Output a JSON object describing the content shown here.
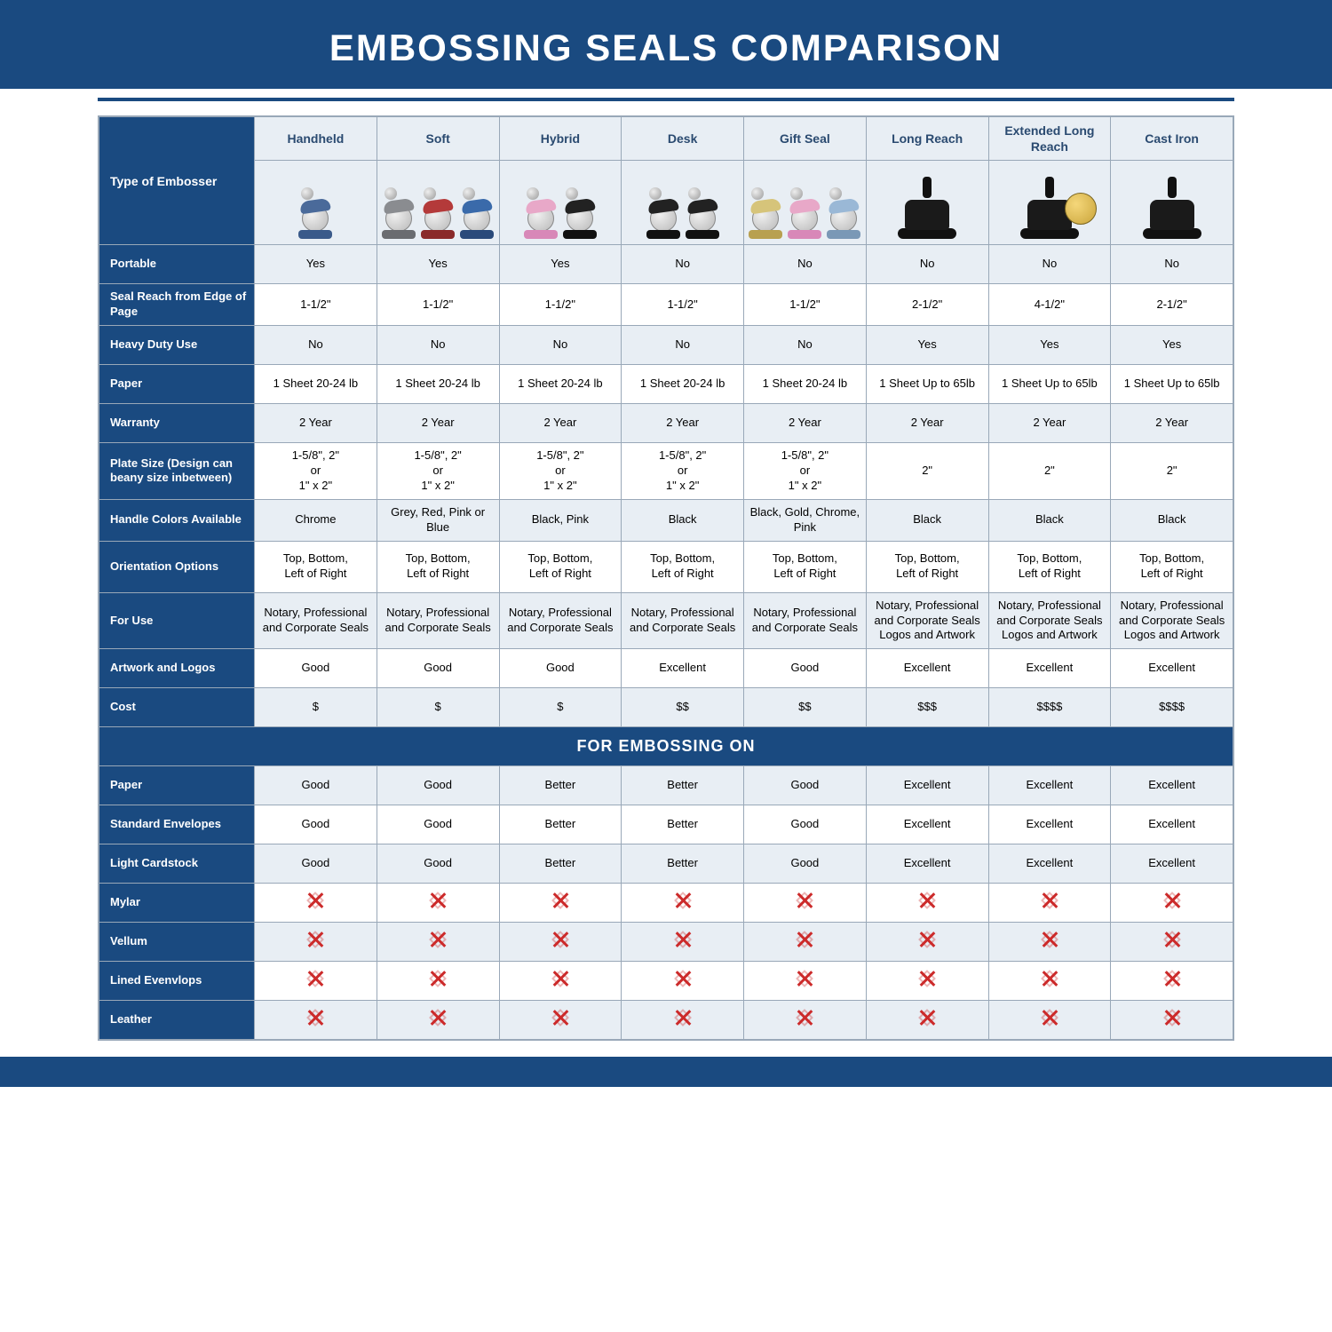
{
  "title": "EMBOSSING SEALS COMPARISON",
  "section_bar": "FOR EMBOSSING ON",
  "colors": {
    "brand": "#1a4a80",
    "row_alt": "#e8eef4",
    "border": "#99a8b8",
    "x_red": "#cc2a2a",
    "text_head": "#2a4a70"
  },
  "columns": [
    {
      "key": "handheld",
      "label": "Handheld",
      "img": {
        "items": [
          {
            "arm": "#4a6a9a",
            "base": "#3a5a8a"
          }
        ]
      }
    },
    {
      "key": "soft",
      "label": "Soft",
      "img": {
        "items": [
          {
            "arm": "#8a8c90",
            "base": "#6a6c70"
          },
          {
            "arm": "#b43a3a",
            "base": "#8a2a2a"
          },
          {
            "arm": "#3a6aaa",
            "base": "#2a4a7a"
          }
        ]
      }
    },
    {
      "key": "hybrid",
      "label": "Hybrid",
      "img": {
        "items": [
          {
            "arm": "#e8a8c8",
            "base": "#d888b8"
          },
          {
            "arm": "#222",
            "base": "#111"
          }
        ]
      }
    },
    {
      "key": "desk",
      "label": "Desk",
      "img": {
        "items": [
          {
            "arm": "#222",
            "base": "#111"
          },
          {
            "arm": "#222",
            "base": "#111"
          }
        ]
      }
    },
    {
      "key": "gift",
      "label": "Gift Seal",
      "img": {
        "items": [
          {
            "arm": "#d6c47a",
            "base": "#b8a050"
          },
          {
            "arm": "#e8a8c8",
            "base": "#d888b8"
          },
          {
            "arm": "#9ab8d6",
            "base": "#7a98b6"
          }
        ]
      }
    },
    {
      "key": "long",
      "label": "Long Reach",
      "img": {
        "heavy": true
      }
    },
    {
      "key": "xlong",
      "label": "Extended Long Reach",
      "img": {
        "heavy": true,
        "disc": true
      }
    },
    {
      "key": "iron",
      "label": "Cast Iron",
      "img": {
        "heavy": true
      }
    }
  ],
  "header_label": "Type of Embosser",
  "rows": [
    {
      "label": "Portable",
      "cells": [
        "Yes",
        "Yes",
        "Yes",
        "No",
        "No",
        "No",
        "No",
        "No"
      ]
    },
    {
      "label": "Seal Reach from Edge of Page",
      "cells": [
        "1-1/2\"",
        "1-1/2\"",
        "1-1/2\"",
        "1-1/2\"",
        "1-1/2\"",
        "2-1/2\"",
        "4-1/2\"",
        "2-1/2\""
      ]
    },
    {
      "label": "Heavy Duty Use",
      "cells": [
        "No",
        "No",
        "No",
        "No",
        "No",
        "Yes",
        "Yes",
        "Yes"
      ]
    },
    {
      "label": "Paper",
      "cells": [
        "1 Sheet 20-24 lb",
        "1 Sheet 20-24 lb",
        "1 Sheet 20-24 lb",
        "1 Sheet 20-24 lb",
        "1 Sheet 20-24 lb",
        "1 Sheet Up to 65lb",
        "1 Sheet Up to 65lb",
        "1 Sheet Up to 65lb"
      ]
    },
    {
      "label": "Warranty",
      "cells": [
        "2 Year",
        "2 Year",
        "2 Year",
        "2 Year",
        "2 Year",
        "2 Year",
        "2 Year",
        "2 Year"
      ]
    },
    {
      "label": "Plate Size (Design can beany size inbetween)",
      "tall": true,
      "cells": [
        "1-5/8\", 2\"\nor\n1\" x 2\"",
        "1-5/8\", 2\"\nor\n1\" x 2\"",
        "1-5/8\", 2\"\nor\n1\" x 2\"",
        "1-5/8\", 2\"\nor\n1\" x 2\"",
        "1-5/8\", 2\"\nor\n1\" x 2\"",
        "2\"",
        "2\"",
        "2\""
      ]
    },
    {
      "label": "Handle Colors Available",
      "cells": [
        "Chrome",
        "Grey, Red, Pink or Blue",
        "Black, Pink",
        "Black",
        "Black, Gold, Chrome, Pink",
        "Black",
        "Black",
        "Black"
      ]
    },
    {
      "label": "Orientation Options",
      "tall": true,
      "cells": [
        "Top, Bottom,\nLeft of Right",
        "Top, Bottom,\nLeft of Right",
        "Top, Bottom,\nLeft of Right",
        "Top, Bottom,\nLeft of Right",
        "Top, Bottom,\nLeft of Right",
        "Top, Bottom,\nLeft of Right",
        "Top, Bottom,\nLeft of Right",
        "Top, Bottom,\nLeft of Right"
      ]
    },
    {
      "label": "For Use",
      "tall": true,
      "cells": [
        "Notary, Professional and Corporate Seals",
        "Notary, Professional and Corporate Seals",
        "Notary, Professional and Corporate Seals",
        "Notary, Professional and Corporate Seals",
        "Notary, Professional and Corporate Seals",
        "Notary, Professional and Corporate Seals Logos and Artwork",
        "Notary, Professional and Corporate Seals Logos and Artwork",
        "Notary, Professional and Corporate Seals Logos and Artwork"
      ]
    },
    {
      "label": "Artwork and Logos",
      "cells": [
        "Good",
        "Good",
        "Good",
        "Excellent",
        "Good",
        "Excellent",
        "Excellent",
        "Excellent"
      ]
    },
    {
      "label": "Cost",
      "cells": [
        "$",
        "$",
        "$",
        "$$",
        "$$",
        "$$$",
        "$$$$",
        "$$$$"
      ]
    }
  ],
  "emboss_rows": [
    {
      "label": "Paper",
      "cells": [
        "Good",
        "Good",
        "Better",
        "Better",
        "Good",
        "Excellent",
        "Excellent",
        "Excellent"
      ]
    },
    {
      "label": "Standard Envelopes",
      "cells": [
        "Good",
        "Good",
        "Better",
        "Better",
        "Good",
        "Excellent",
        "Excellent",
        "Excellent"
      ]
    },
    {
      "label": "Light Cardstock",
      "cells": [
        "Good",
        "Good",
        "Better",
        "Better",
        "Good",
        "Excellent",
        "Excellent",
        "Excellent"
      ]
    },
    {
      "label": "Mylar",
      "cells": [
        "X",
        "X",
        "X",
        "X",
        "X",
        "X",
        "X",
        "X"
      ]
    },
    {
      "label": "Vellum",
      "cells": [
        "X",
        "X",
        "X",
        "X",
        "X",
        "X",
        "X",
        "X"
      ]
    },
    {
      "label": "Lined Evenvlops",
      "cells": [
        "X",
        "X",
        "X",
        "X",
        "X",
        "X",
        "X",
        "X"
      ]
    },
    {
      "label": "Leather",
      "cells": [
        "X",
        "X",
        "X",
        "X",
        "X",
        "X",
        "X",
        "X"
      ]
    }
  ]
}
